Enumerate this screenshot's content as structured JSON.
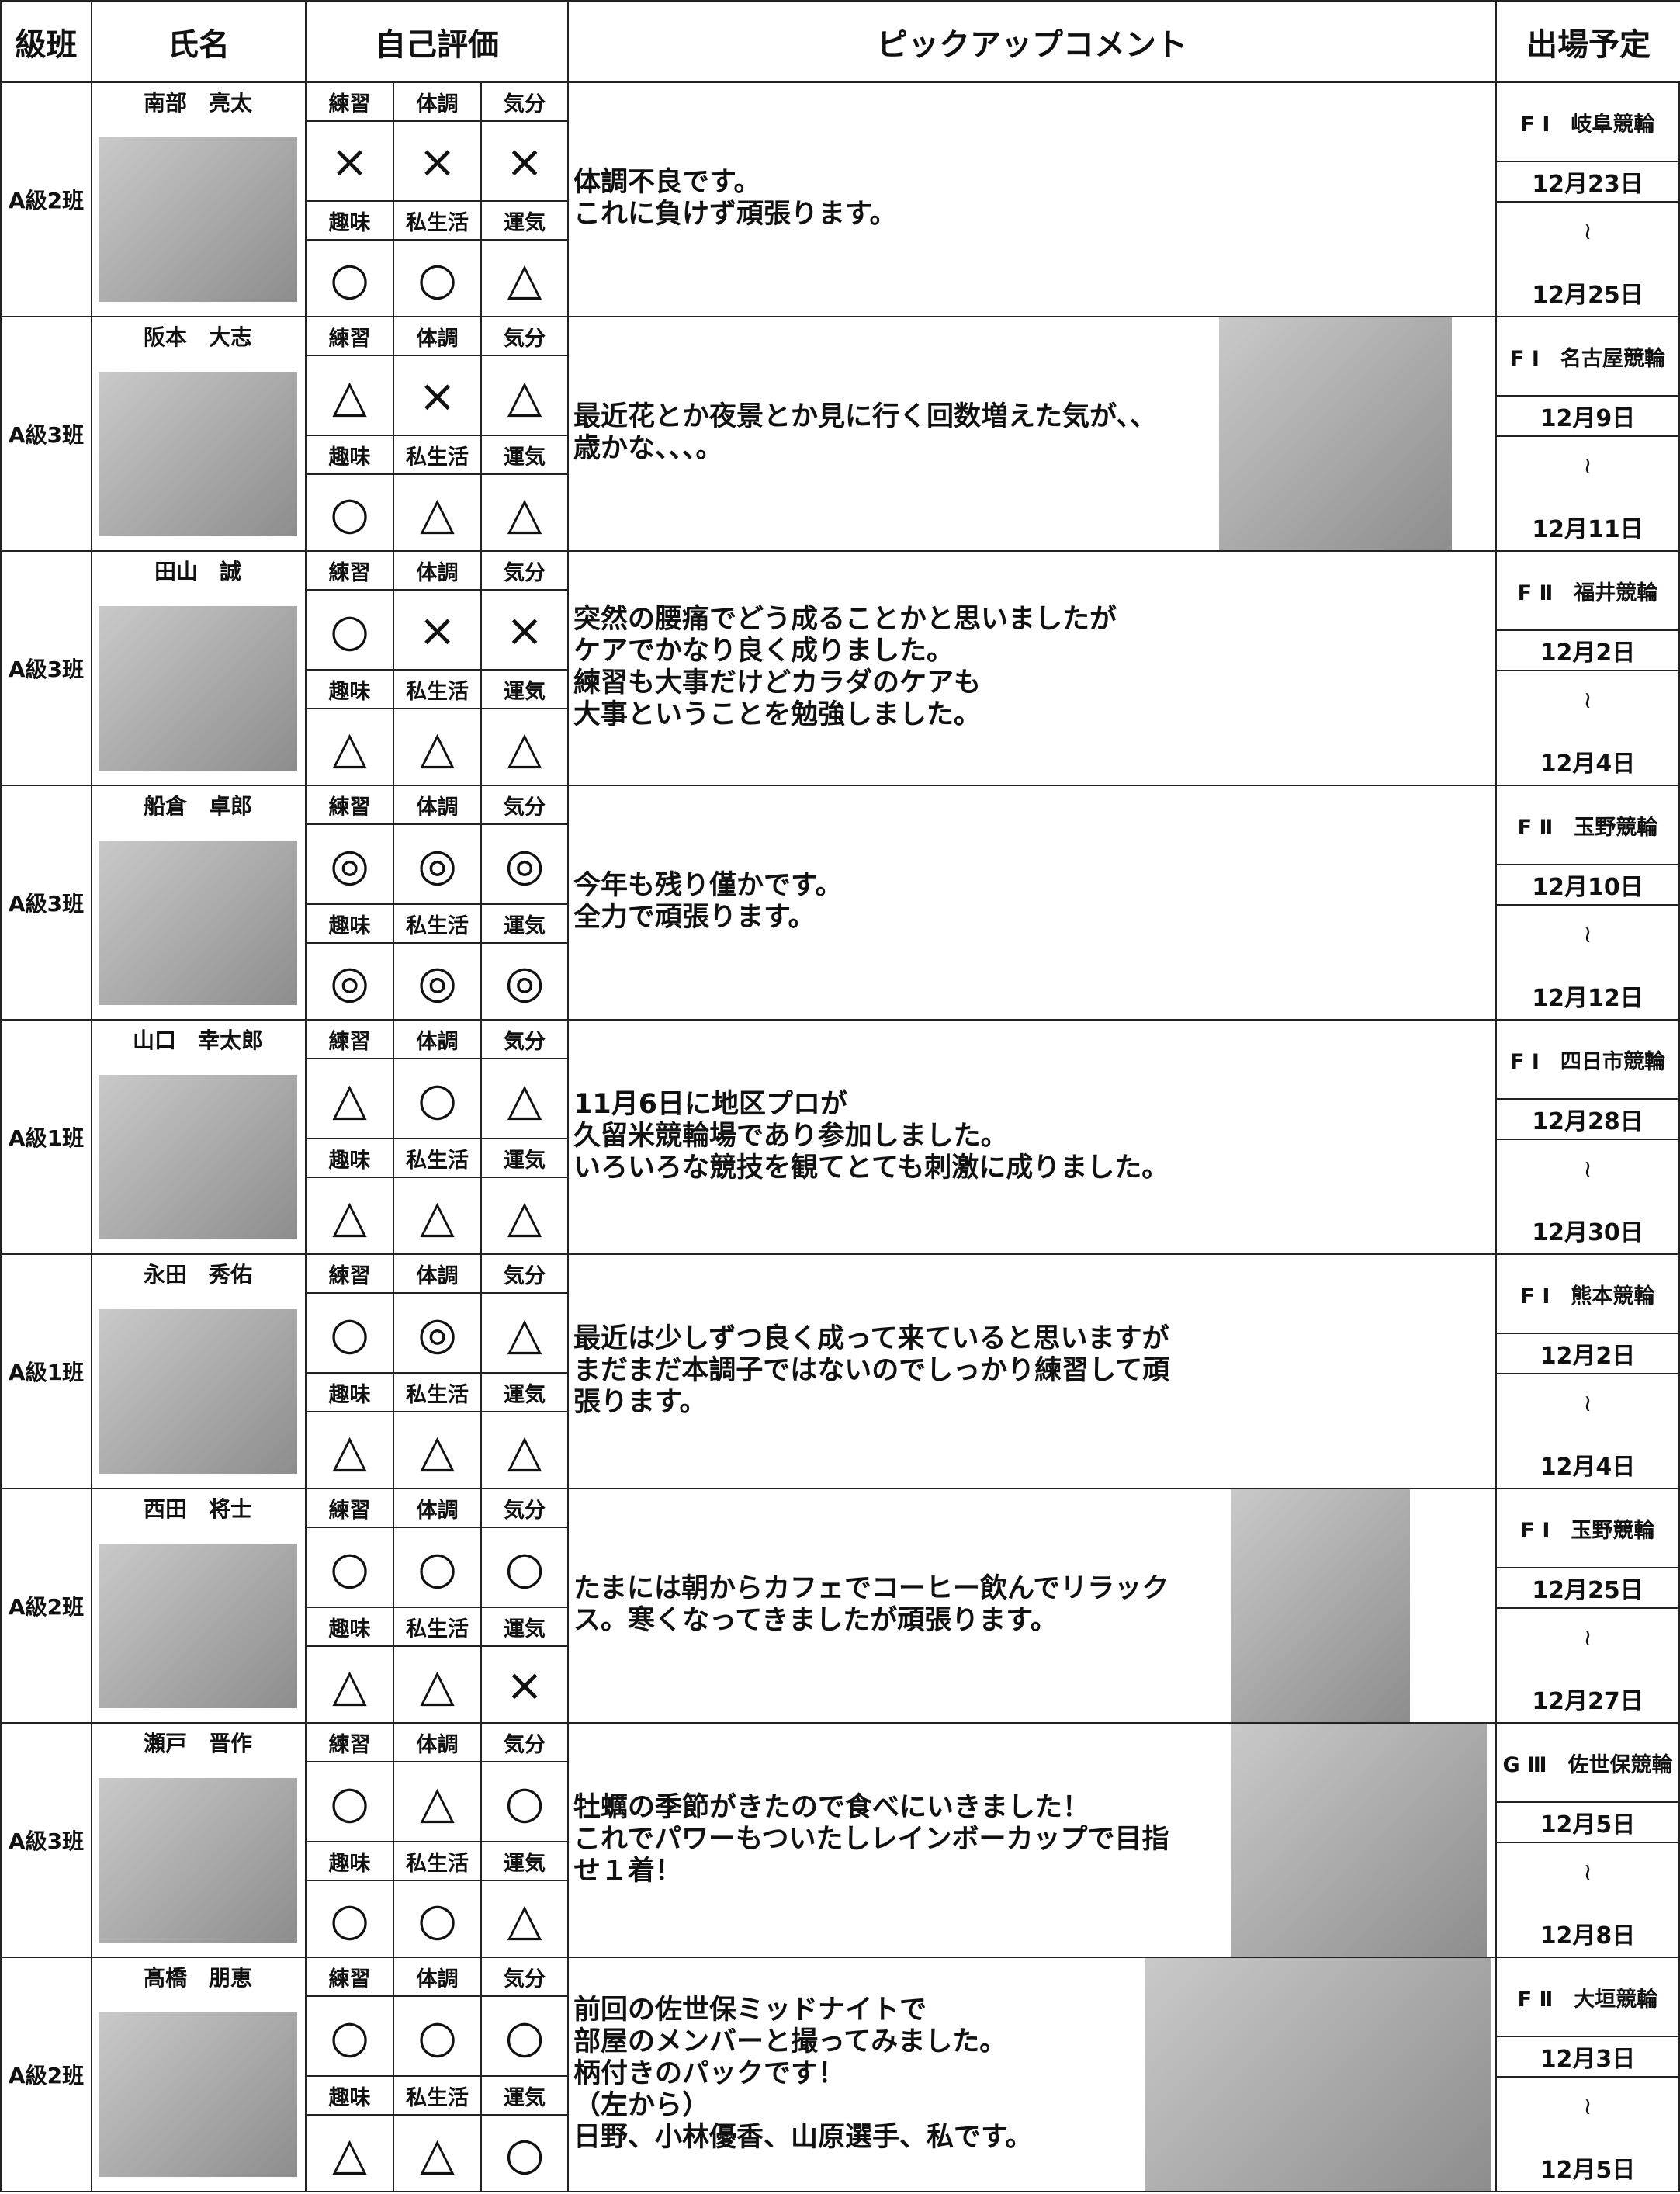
{
  "header": [
    "級班",
    "氏名",
    "自己評価",
    "ピックアップコメント",
    "出場予定"
  ],
  "rating_labels": [
    "練習",
    "体調",
    "気分",
    "趣味",
    "私生活",
    "運気"
  ],
  "rows": [
    {
      "grade": "A級2班",
      "name": "南部　亮太",
      "ratings": [
        "×",
        "×",
        "×",
        "○",
        "○",
        "△"
      ],
      "comment": [
        "体調不良です。",
        "これに負けず頑張ります。"
      ],
      "race": "F Ⅰ　岐阜競輪",
      "start": "12月23日",
      "sep": "≀",
      "end": "12月25日"
    },
    {
      "grade": "A級3班",
      "name": "阪本　大志",
      "ratings": [
        "△",
        "×",
        "△",
        "○",
        "△",
        "△"
      ],
      "comment": [
        "最近花とか夜景とか見に行く回数増えた気が、、",
        "歳かな、、、。"
      ],
      "race": "F Ⅰ　名古屋競輪",
      "start": "12月9日",
      "sep": "≀",
      "end": "12月11日"
    },
    {
      "grade": "A級3班",
      "name": "田山　誠",
      "ratings": [
        "○",
        "×",
        "×",
        "△",
        "△",
        "△"
      ],
      "comment": [
        "突然の腰痛でどう成ることかと思いましたが",
        "ケアでかなり良く成りました。",
        "練習も大事だけどカラダのケアも",
        "大事ということを勉強しました。"
      ],
      "race": "F Ⅱ　福井競輪",
      "start": "12月2日",
      "sep": "≀",
      "end": "12月4日"
    },
    {
      "grade": "A級3班",
      "name": "船倉　卓郎",
      "ratings": [
        "◎",
        "◎",
        "◎",
        "◎",
        "◎",
        "◎"
      ],
      "comment": [
        "今年も残り僅かです。",
        "全力で頑張ります。"
      ],
      "race": "F Ⅱ　玉野競輪",
      "start": "12月10日",
      "sep": "≀",
      "end": "12月12日"
    },
    {
      "grade": "A級1班",
      "name": "山口　幸太郎",
      "ratings": [
        "△",
        "○",
        "△",
        "△",
        "△",
        "△"
      ],
      "comment": [
        "11月6日に地区プロが",
        "久留米競輪場であり参加しました。",
        "いろいろな競技を観てとても刺激に成りました。"
      ],
      "race": "F Ⅰ　四日市競輪",
      "start": "12月28日",
      "sep": "≀",
      "end": "12月30日"
    },
    {
      "grade": "A級1班",
      "name": "永田　秀佑",
      "ratings": [
        "○",
        "◎",
        "△",
        "△",
        "△",
        "△"
      ],
      "comment": [
        "最近は少しずつ良く成って来ていると思いますが",
        "まだまだ本調子ではないのでしっかり練習して頑",
        "張ります。"
      ],
      "race": "F Ⅰ　熊本競輪",
      "start": "12月2日",
      "sep": "≀",
      "end": "12月4日"
    },
    {
      "grade": "A級2班",
      "name": "西田　将士",
      "ratings": [
        "○",
        "○",
        "○",
        "△",
        "△",
        "×"
      ],
      "comment": [
        "たまには朝からカフェでコーヒー飲んでリラック",
        "ス。寒くなってきましたが頑張ります。"
      ],
      "race": "F Ⅰ　玉野競輪",
      "start": "12月25日",
      "sep": "≀",
      "end": "12月27日"
    },
    {
      "grade": "A級3班",
      "name": "瀬戸　晋作",
      "ratings": [
        "○",
        "△",
        "○",
        "○",
        "○",
        "△"
      ],
      "comment": [
        "牡蠣の季節がきたので食べにいきました！",
        "これでパワーもついたしレインボーカップで目指",
        "せ１着！"
      ],
      "race": "G Ⅲ　佐世保競輪",
      "start": "12月5日",
      "sep": "≀",
      "end": "12月8日"
    },
    {
      "grade": "A級2班",
      "name": "髙橋　朋恵",
      "ratings": [
        "○",
        "○",
        "○",
        "△",
        "△",
        "○"
      ],
      "comment": [
        "前回の佐世保ミッドナイトで",
        "部屋のメンバーと撮ってみました。",
        "柄付きのパックです！",
        "（左から）",
        "日野、小林優香、山原選手、私です。"
      ],
      "race": "F Ⅱ　大垣競輪",
      "start": "12月3日",
      "sep": "≀",
      "end": "12月5日"
    }
  ]
}
